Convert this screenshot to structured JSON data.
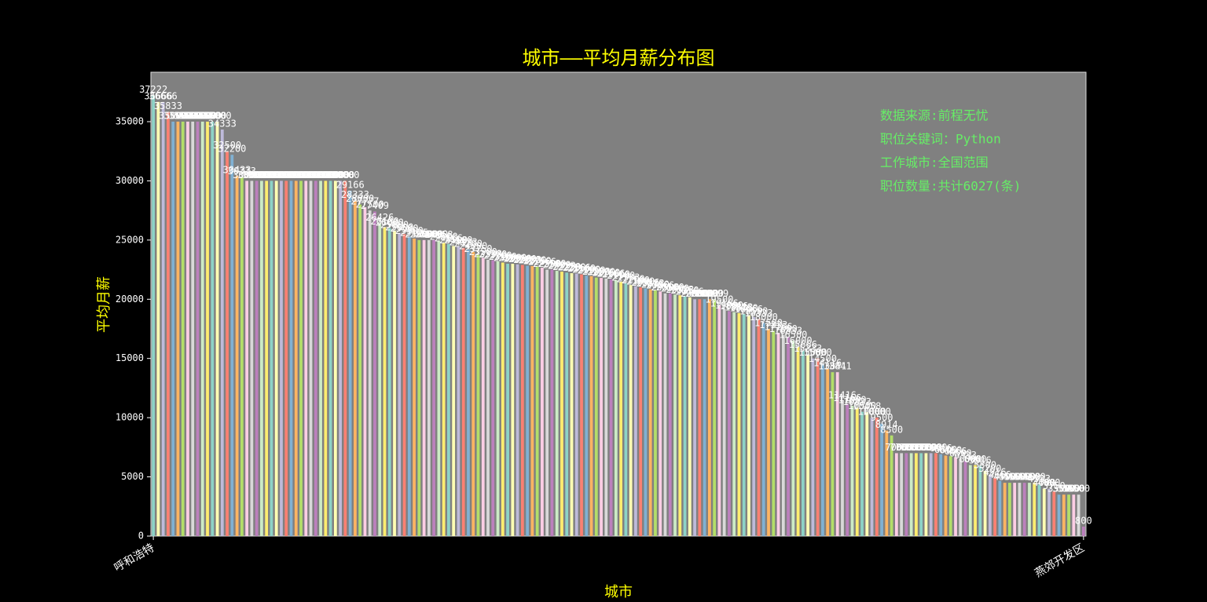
{
  "chart_data": {
    "type": "bar",
    "title": "城市——平均月薪分布图",
    "x_label": "城市",
    "y_label": "平均月薪",
    "annotations": [
      "数据来源:前程无忧",
      "职位关键词：Python",
      "工作城市:全国范围",
      "职位数量:共计6027(条)"
    ],
    "categories": [
      "呼和浩特",
      null,
      null,
      null,
      null,
      null,
      null,
      null,
      null,
      null,
      null,
      null,
      null,
      null,
      null,
      null,
      null,
      null,
      null,
      null,
      null,
      null,
      null,
      null,
      null,
      null,
      null,
      null,
      null,
      null,
      null,
      null,
      null,
      null,
      null,
      null,
      null,
      null,
      null,
      null,
      null,
      null,
      null,
      null,
      null,
      null,
      null,
      null,
      null,
      null,
      null,
      null,
      null,
      null,
      null,
      null,
      null,
      null,
      null,
      null,
      null,
      null,
      null,
      null,
      null,
      null,
      null,
      null,
      null,
      null,
      null,
      null,
      null,
      null,
      null,
      null,
      null,
      null,
      null,
      null,
      null,
      null,
      null,
      null,
      null,
      null,
      null,
      null,
      null,
      null,
      null,
      null,
      null,
      null,
      null,
      null,
      null,
      null,
      null,
      null,
      null,
      null,
      null,
      null,
      null,
      null,
      null,
      null,
      null,
      null,
      null,
      null,
      null,
      null,
      null,
      null,
      null,
      null,
      null,
      null,
      null,
      null,
      null,
      null,
      null,
      null,
      null,
      null,
      null,
      null,
      null,
      null,
      null,
      null,
      null,
      null,
      null,
      null,
      null,
      null,
      null,
      null,
      null,
      null,
      null,
      null,
      null,
      null,
      null,
      null,
      null,
      null,
      null,
      null,
      null,
      null,
      null,
      null,
      null,
      null,
      null,
      null,
      null,
      null,
      null,
      null,
      null,
      null,
      null,
      null,
      null,
      null,
      null,
      null,
      null,
      null,
      null,
      null,
      null,
      null,
      null,
      null,
      null,
      null,
      null,
      null,
      null,
      null,
      null,
      "燕郊开发区"
    ],
    "values": [
      37222,
      36666,
      36666,
      35833,
      35000,
      35000,
      35000,
      35000,
      35000,
      35000,
      35000,
      35000,
      35000,
      35000,
      34333,
      32500,
      32200,
      30433,
      30333,
      30000,
      30000,
      30000,
      30000,
      30000,
      30000,
      30000,
      30000,
      30000,
      30000,
      30000,
      30000,
      30000,
      30000,
      30000,
      30000,
      30000,
      30000,
      30000,
      30000,
      30000,
      29166,
      28333,
      28000,
      27777,
      27500,
      27409,
      26426,
      26100,
      26000,
      25800,
      25600,
      25500,
      25300,
      25125,
      25000,
      25000,
      25000,
      25000,
      24958,
      24800,
      24666,
      24500,
      24500,
      24333,
      24200,
      24000,
      23750,
      23500,
      23333,
      23300,
      23200,
      23100,
      23000,
      23000,
      22950,
      22900,
      22833,
      22800,
      22750,
      22666,
      22500,
      22500,
      22400,
      22333,
      22250,
      22200,
      22166,
      22100,
      22000,
      21950,
      21833,
      21800,
      21750,
      21666,
      21600,
      21500,
      21333,
      21200,
      21100,
      21000,
      20916,
      20833,
      20750,
      20666,
      20500,
      20500,
      20400,
      20333,
      20250,
      20166,
      20000,
      20000,
      20000,
      20000,
      19999,
      19500,
      19166,
      19000,
      18916,
      18833,
      18750,
      18666,
      18500,
      18333,
      18000,
      17500,
      17333,
      17166,
      17000,
      16833,
      16500,
      16000,
      15666,
      15333,
      15000,
      15000,
      14500,
      14116,
      13841,
      13841,
      11416,
      11166,
      11000,
      10833,
      10500,
      10458,
      10000,
      10000,
      9500,
      8914,
      8500,
      7000,
      7000,
      7000,
      7000,
      7000,
      7000,
      7000,
      7000,
      7000,
      6916,
      6800,
      6750,
      6666,
      6500,
      6333,
      6000,
      6000,
      5916,
      5500,
      5200,
      4916,
      4666,
      4500,
      4500,
      4500,
      4500,
      4500,
      4500,
      4500,
      4333,
      4000,
      4000,
      3750,
      3500,
      3500,
      3500,
      3500,
      3500,
      800
    ],
    "colors": [
      "#8dd3c7",
      "#ffffb3",
      "#bebada",
      "#fb8072",
      "#80b1d3",
      "#fdb462",
      "#b3de69",
      "#fccde5",
      "#d9d9d9",
      "#bc80bd",
      "#ccebc5",
      "#ffed6f"
    ],
    "ylim": [
      0,
      39175
    ],
    "yticks": [
      0,
      5000,
      10000,
      15000,
      20000,
      25000,
      30000,
      35000
    ]
  }
}
